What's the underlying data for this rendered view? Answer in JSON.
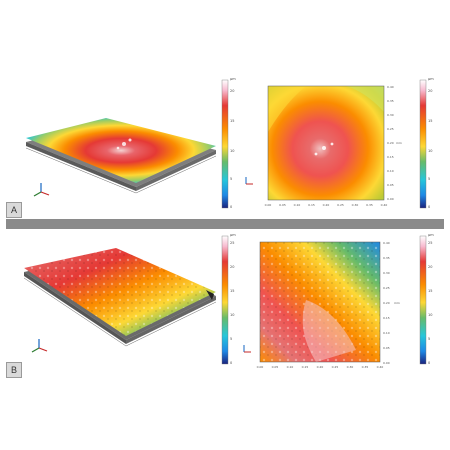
{
  "panels": [
    {
      "label": "A",
      "colorbar_left": {
        "unit": "μm",
        "ticks": [
          "20",
          "15",
          "10",
          "5",
          "0"
        ]
      },
      "colorbar_right": {
        "unit": "μm",
        "ticks": [
          "20",
          "15",
          "10",
          "5",
          "0"
        ]
      },
      "top_axis_ticks": [
        "0.00",
        "0.05",
        "0.10",
        "0.15",
        "0.20",
        "0.25",
        "0.30",
        "0.35",
        "0.40"
      ],
      "side_axis_ticks": [
        "0.40",
        "0.35",
        "0.30",
        "0.25",
        "0.20",
        "0.15",
        "0.10",
        "0.05",
        "0.00"
      ],
      "side_axis_unit": "mm"
    },
    {
      "label": "B",
      "colorbar_left": {
        "unit": "μm",
        "ticks": [
          "25",
          "20",
          "15",
          "10",
          "5",
          "0"
        ]
      },
      "colorbar_right": {
        "unit": "μm",
        "ticks": [
          "25",
          "20",
          "15",
          "10",
          "5",
          "0"
        ]
      },
      "top_axis_ticks": [
        "0.00",
        "0.05",
        "0.10",
        "0.15",
        "0.20",
        "0.25",
        "0.30",
        "0.35",
        "0.40"
      ],
      "side_axis_ticks": [
        "0.40",
        "0.35",
        "0.30",
        "0.25",
        "0.20",
        "0.15",
        "0.10",
        "0.05",
        "0.00"
      ],
      "side_axis_unit": "mm"
    }
  ],
  "colors": {
    "divider": "#8a8a8a",
    "heatmap_stops": [
      "#1a237e",
      "#1e88e5",
      "#26c6da",
      "#66bb6a",
      "#d4e157",
      "#fdd835",
      "#fb8c00",
      "#e53935",
      "#f8bbd0",
      "#ffffff"
    ]
  },
  "icons": [
    "xyz-axis-triad-icon"
  ]
}
